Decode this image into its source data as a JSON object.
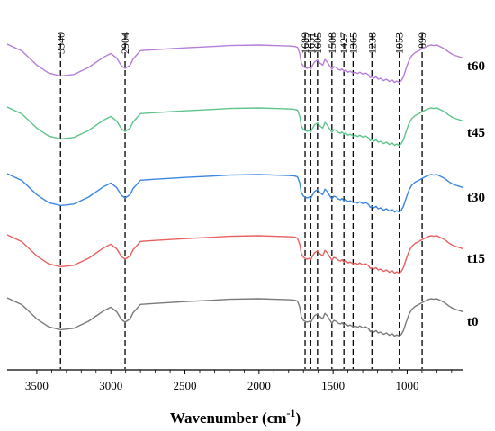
{
  "chart_data": {
    "type": "line",
    "xlabel": "Wavenumber (cm",
    "xlabel_sup": "-1",
    "xlabel_end": ")",
    "xlim": [
      3700,
      620
    ],
    "x_reversed": true,
    "y_axis_shown": false,
    "grid": false,
    "x_ticks": [
      3500,
      3000,
      2500,
      2000,
      1500,
      1000
    ],
    "x_tick_labels": [
      "3500",
      "3000",
      "2500",
      "2000",
      "1500",
      "1000"
    ],
    "peak_markers": [
      {
        "label": "3340",
        "x": 3340
      },
      {
        "label": "2904",
        "x": 2904
      },
      {
        "label": "1689",
        "x": 1689
      },
      {
        "label": "1651",
        "x": 1651
      },
      {
        "label": "1605",
        "x": 1605
      },
      {
        "label": "1508",
        "x": 1508
      },
      {
        "label": "1427",
        "x": 1427
      },
      {
        "label": "1365",
        "x": 1365
      },
      {
        "label": "1238",
        "x": 1238
      },
      {
        "label": "1053",
        "x": 1053
      },
      {
        "label": "899",
        "x": 899
      }
    ],
    "profile_x": [
      3700,
      3600,
      3500,
      3420,
      3340,
      3250,
      3150,
      3050,
      3000,
      2960,
      2930,
      2904,
      2870,
      2850,
      2800,
      2700,
      2500,
      2300,
      2200,
      2000,
      1900,
      1800,
      1760,
      1740,
      1725,
      1715,
      1700,
      1689,
      1675,
      1660,
      1651,
      1640,
      1625,
      1605,
      1590,
      1570,
      1555,
      1540,
      1525,
      1508,
      1495,
      1480,
      1465,
      1450,
      1440,
      1427,
      1415,
      1400,
      1385,
      1375,
      1365,
      1350,
      1335,
      1320,
      1300,
      1280,
      1260,
      1250,
      1238,
      1225,
      1210,
      1195,
      1180,
      1160,
      1140,
      1120,
      1100,
      1085,
      1070,
      1053,
      1040,
      1025,
      1010,
      990,
      970,
      945,
      920,
      899,
      880,
      860,
      840,
      820,
      800,
      780,
      760,
      740,
      720,
      700,
      680,
      660,
      640,
      620
    ],
    "profile_y": [
      100,
      85,
      55,
      38,
      32,
      35,
      50,
      72,
      80,
      70,
      54,
      48,
      55,
      68,
      86,
      88,
      92,
      95,
      97,
      98,
      97,
      96,
      95,
      93,
      80,
      60,
      52,
      50,
      48,
      50,
      47,
      54,
      62,
      66,
      60,
      55,
      67,
      62,
      54,
      46,
      52,
      50,
      46,
      44,
      47,
      42,
      45,
      40,
      42,
      40,
      38,
      40,
      37,
      40,
      36,
      38,
      34,
      28,
      30,
      27,
      30,
      25,
      27,
      22,
      25,
      20,
      23,
      18,
      21,
      18,
      22,
      30,
      45,
      63,
      75,
      82,
      86,
      90,
      93,
      96,
      98,
      97,
      98,
      95,
      92,
      88,
      83,
      79,
      76,
      74,
      72,
      70
    ],
    "series": [
      {
        "name": "t60",
        "color": "#b57ed8"
      },
      {
        "name": "t45",
        "color": "#5ec48a"
      },
      {
        "name": "t30",
        "color": "#3c86e0"
      },
      {
        "name": "t15",
        "color": "#e86060"
      },
      {
        "name": "t0",
        "color": "#7a7a7a"
      }
    ]
  }
}
